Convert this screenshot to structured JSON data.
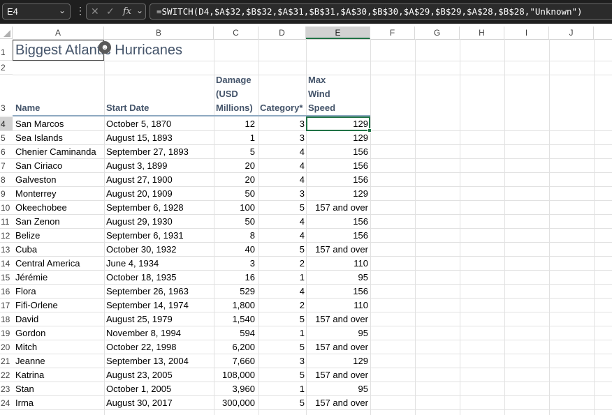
{
  "formula_bar": {
    "name_box": "E4",
    "formula": "=SWITCH(D4,$A$32,$B$32,$A$31,$B$31,$A$30,$B$30,$A$29,$B$29,$A$28,$B$28,\"Unknown\")",
    "fx_label": "fx"
  },
  "columns": [
    "A",
    "B",
    "C",
    "D",
    "E",
    "F",
    "G",
    "H",
    "I",
    "J"
  ],
  "rows": [
    "1",
    "2",
    "3",
    "4",
    "5",
    "6",
    "7",
    "8",
    "9",
    "10",
    "11",
    "12",
    "13",
    "14",
    "15",
    "16",
    "17",
    "18",
    "19",
    "20",
    "21",
    "22",
    "23",
    "24"
  ],
  "sheet": {
    "title": "Biggest Atlantic Hurricanes",
    "headers": {
      "name": "Name",
      "start_date": "Start Date",
      "damage_l1": "Damage",
      "damage_l2": "(USD",
      "damage_l3": "Millions)",
      "category": "Category*",
      "wind_l1": "Max",
      "wind_l2": "Wind",
      "wind_l3": "Speed"
    },
    "data": [
      {
        "name": "San Marcos",
        "date": "October 5, 1870",
        "damage": "12",
        "category": "3",
        "wind": "129"
      },
      {
        "name": "Sea Islands",
        "date": "August 15, 1893",
        "damage": "1",
        "category": "3",
        "wind": "129"
      },
      {
        "name": "Chenier Caminanda",
        "date": "September 27, 1893",
        "damage": "5",
        "category": "4",
        "wind": "156"
      },
      {
        "name": "San Ciriaco",
        "date": "August 3, 1899",
        "damage": "20",
        "category": "4",
        "wind": "156"
      },
      {
        "name": "Galveston",
        "date": "August 27, 1900",
        "damage": "20",
        "category": "4",
        "wind": "156"
      },
      {
        "name": "Monterrey",
        "date": "August 20, 1909",
        "damage": "50",
        "category": "3",
        "wind": "129"
      },
      {
        "name": "Okeechobee",
        "date": "September 6, 1928",
        "damage": "100",
        "category": "5",
        "wind": "157 and over"
      },
      {
        "name": "San Zenon",
        "date": "August 29, 1930",
        "damage": "50",
        "category": "4",
        "wind": "156"
      },
      {
        "name": "Belize",
        "date": "September 6, 1931",
        "damage": "8",
        "category": "4",
        "wind": "156"
      },
      {
        "name": "Cuba",
        "date": "October 30, 1932",
        "damage": "40",
        "category": "5",
        "wind": "157 and over"
      },
      {
        "name": "Central America",
        "date": "June 4, 1934",
        "damage": "3",
        "category": "2",
        "wind": "110"
      },
      {
        "name": "Jérémie",
        "date": "October 18, 1935",
        "damage": "16",
        "category": "1",
        "wind": "95"
      },
      {
        "name": "Flora",
        "date": "September 26, 1963",
        "damage": "529",
        "category": "4",
        "wind": "156"
      },
      {
        "name": "Fifi-Orlene",
        "date": "September 14, 1974",
        "damage": "1,800",
        "category": "2",
        "wind": "110"
      },
      {
        "name": "David",
        "date": "August 25, 1979",
        "damage": "1,540",
        "category": "5",
        "wind": "157 and over"
      },
      {
        "name": "Gordon",
        "date": "November 8, 1994",
        "damage": "594",
        "category": "1",
        "wind": "95"
      },
      {
        "name": "Mitch",
        "date": "October 22, 1998",
        "damage": "6,200",
        "category": "5",
        "wind": "157 and over"
      },
      {
        "name": "Jeanne",
        "date": "September 13, 2004",
        "damage": "7,660",
        "category": "3",
        "wind": "129"
      },
      {
        "name": "Katrina",
        "date": "August 23, 2005",
        "damage": "108,000",
        "category": "5",
        "wind": "157 and over"
      },
      {
        "name": "Stan",
        "date": "October 1, 2005",
        "damage": "3,960",
        "category": "1",
        "wind": "95"
      },
      {
        "name": "Irma",
        "date": "August 30, 2017",
        "damage": "300,000",
        "category": "5",
        "wind": "157 and over"
      }
    ]
  }
}
